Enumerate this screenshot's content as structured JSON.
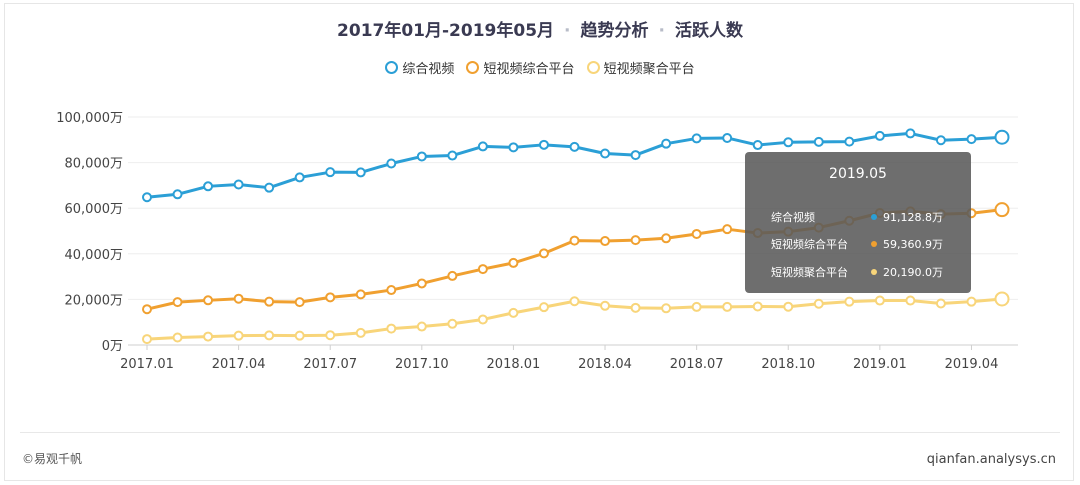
{
  "title": {
    "period": "2017年01月-2019年05月",
    "separator": "·",
    "section": "趋势分析",
    "metric": "活跃人数"
  },
  "legend": [
    {
      "label": "综合视频",
      "color": "#2b9fd6"
    },
    {
      "label": "短视频综合平台",
      "color": "#f0a030"
    },
    {
      "label": "短视频聚合平台",
      "color": "#f8d57a"
    }
  ],
  "chart_data": {
    "type": "line",
    "x": [
      "2017.01",
      "2017.02",
      "2017.03",
      "2017.04",
      "2017.05",
      "2017.06",
      "2017.07",
      "2017.08",
      "2017.09",
      "2017.10",
      "2017.11",
      "2017.12",
      "2018.01",
      "2018.02",
      "2018.03",
      "2018.04",
      "2018.05",
      "2018.06",
      "2018.07",
      "2018.08",
      "2018.09",
      "2018.10",
      "2018.11",
      "2018.12",
      "2019.01",
      "2019.02",
      "2019.03",
      "2019.04",
      "2019.05"
    ],
    "x_tick_labels": [
      "2017.01",
      "2017.04",
      "2017.07",
      "2017.10",
      "2018.01",
      "2018.04",
      "2018.07",
      "2018.10",
      "2019.01",
      "2019.04"
    ],
    "y_tick_labels": [
      "0万",
      "20,000万",
      "40,000万",
      "60,000万",
      "80,000万",
      "100,000万"
    ],
    "ylim": [
      0,
      100000
    ],
    "y_unit": "万",
    "grid": true,
    "legend_position": "top",
    "series": [
      {
        "name": "综合视频",
        "color": "#2b9fd6",
        "values": [
          64800,
          66100,
          69600,
          70400,
          69000,
          73500,
          75800,
          75700,
          79600,
          82700,
          83100,
          87100,
          86700,
          87800,
          86900,
          84000,
          83300,
          88300,
          90600,
          90800,
          87700,
          88900,
          89100,
          89200,
          91700,
          92800,
          89800,
          90300,
          91128.8
        ]
      },
      {
        "name": "短视频综合平台",
        "color": "#f0a030",
        "values": [
          15700,
          18800,
          19600,
          20300,
          19000,
          18800,
          20900,
          22200,
          24100,
          27000,
          30300,
          33300,
          36000,
          40200,
          45800,
          45600,
          46000,
          46800,
          48700,
          50800,
          49100,
          49700,
          51500,
          54500,
          57900,
          58600,
          57400,
          57800,
          59360.9
        ]
      },
      {
        "name": "短视频聚合平台",
        "color": "#f8d57a",
        "values": [
          2600,
          3300,
          3700,
          4100,
          4200,
          4100,
          4300,
          5300,
          7200,
          8100,
          9300,
          11200,
          14100,
          16600,
          19200,
          17200,
          16300,
          16100,
          16700,
          16700,
          16900,
          16800,
          18100,
          19000,
          19500,
          19500,
          18200,
          19000,
          20190.0
        ]
      }
    ]
  },
  "tooltip": {
    "title": "2019.05",
    "rows": [
      {
        "name": "综合视频",
        "value": "91,128.8万",
        "color": "#2b9fd6"
      },
      {
        "name": "短视频综合平台",
        "value": "59,360.9万",
        "color": "#f0a030"
      },
      {
        "name": "短视频聚合平台",
        "value": "20,190.0万",
        "color": "#f8d57a"
      }
    ]
  },
  "footer": {
    "copyright": "©易观千帆",
    "site": "qianfan.analysys.cn"
  }
}
